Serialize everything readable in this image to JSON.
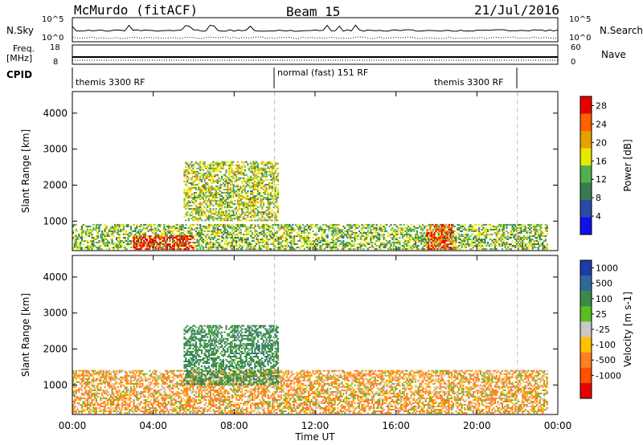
{
  "header": {
    "station": "McMurdo (fitACF)",
    "beam": "Beam 15",
    "date": "21/Jul/2016"
  },
  "noise_panel": {
    "left_label": "N.Sky",
    "left_ticks": [
      "10^5",
      "10^0"
    ],
    "right_label": "N.Search",
    "right_ticks": [
      "10^5",
      "10^0"
    ]
  },
  "freq_panel": {
    "left_label_1": "Freq.",
    "left_label_2": "[MHz]",
    "left_ticks": [
      "18",
      "8"
    ],
    "right_label": "Nave",
    "right_ticks": [
      "60",
      "0"
    ]
  },
  "cpid_panel": {
    "label": "CPID",
    "segments": [
      "themis 3300 RF",
      "normal (fast) 151 RF",
      "themis 3300 RF"
    ]
  },
  "colors": {
    "power_scale": [
      "#1010e8",
      "#2a4aa8",
      "#3a7a50",
      "#50b050",
      "#e8e800",
      "#e8a000",
      "#ff6000",
      "#e80000"
    ],
    "velocity_scale": [
      "#1c3ca8",
      "#2d6a9a",
      "#3a8a4a",
      "#56c020",
      "#c8c8c8",
      "#ffc000",
      "#ff8020",
      "#ff5000",
      "#e80000"
    ]
  },
  "chart_data": [
    {
      "type": "heatmap",
      "title": "",
      "xlabel": "Time UT",
      "ylabel": "Slant Range [km]",
      "xlim_hours": [
        0,
        24
      ],
      "ylim": [
        180,
        4600
      ],
      "x_ticks": [
        "00:00",
        "04:00",
        "08:00",
        "12:00",
        "16:00",
        "20:00",
        "00:00"
      ],
      "y_ticks": [
        1000,
        2000,
        3000,
        4000
      ],
      "colorbar": {
        "label": "Power [dB]",
        "ticks": [
          4,
          8,
          12,
          16,
          20,
          24,
          28
        ],
        "range": [
          0,
          30
        ]
      },
      "features": [
        {
          "name": "near-range echoes",
          "t_start": 0.0,
          "t_end": 23.5,
          "range_km": [
            200,
            900
          ],
          "level_db": 14
        },
        {
          "name": "intense near-range echoes",
          "t_start": 3.0,
          "t_end": 6.0,
          "range_km": [
            200,
            600
          ],
          "level_db": 28
        },
        {
          "name": "intense near-range echoes",
          "t_start": 17.5,
          "t_end": 18.8,
          "range_km": [
            200,
            900
          ],
          "level_db": 26
        },
        {
          "name": "far-range echoes",
          "t_start": 5.5,
          "t_end": 10.2,
          "range_km": [
            1000,
            2650
          ],
          "level_db": 16
        }
      ],
      "mode_change_times": [
        "10:00",
        "22:00"
      ]
    },
    {
      "type": "heatmap",
      "title": "",
      "xlabel": "Time UT",
      "ylabel": "Slant Range [km]",
      "xlim_hours": [
        0,
        24
      ],
      "ylim": [
        180,
        4600
      ],
      "x_ticks": [
        "00:00",
        "04:00",
        "08:00",
        "12:00",
        "16:00",
        "20:00",
        "00:00"
      ],
      "y_ticks": [
        1000,
        2000,
        3000,
        4000
      ],
      "colorbar": {
        "label": "Velocity [m s-1]",
        "ticks": [
          1000,
          500,
          100,
          25,
          -25,
          -100,
          -500,
          -1000
        ]
      },
      "features": [
        {
          "name": "near-range echoes",
          "t_start": 0.0,
          "t_end": 23.5,
          "range_km": [
            200,
            1400
          ],
          "velocity_ms": -150
        },
        {
          "name": "far-range echoes",
          "t_start": 5.5,
          "t_end": 10.2,
          "range_km": [
            1000,
            2650
          ],
          "velocity_ms": 300
        }
      ],
      "mode_change_times": [
        "10:00",
        "22:00"
      ]
    }
  ]
}
